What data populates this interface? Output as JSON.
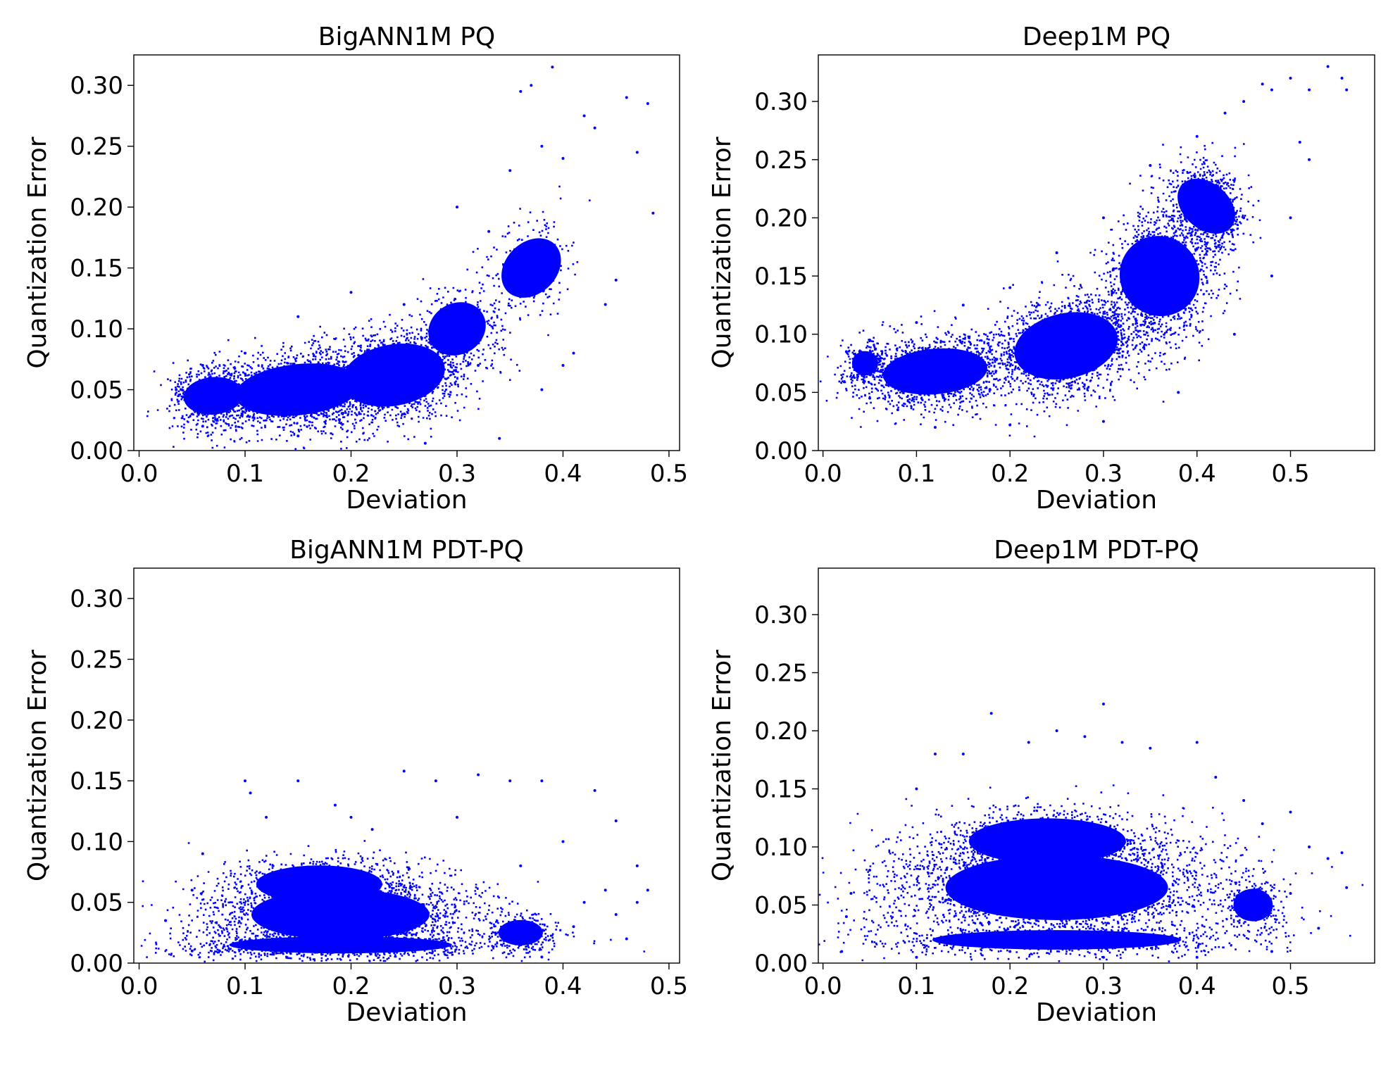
{
  "figure": {
    "colors": {
      "points": "#0000ff",
      "axes": "#000000",
      "background": "#ffffff"
    }
  },
  "chart_data": [
    {
      "type": "scatter",
      "title": "BigANN1M PQ",
      "xlabel": "Deviation",
      "ylabel": "Quantization Error",
      "xlim": [
        -0.005,
        0.51
      ],
      "ylim": [
        0.0,
        0.325
      ],
      "xticks": [
        "0.0",
        "0.1",
        "0.2",
        "0.3",
        "0.4",
        "0.5"
      ],
      "yticks": [
        "0.00",
        "0.05",
        "0.10",
        "0.15",
        "0.20",
        "0.25",
        "0.30"
      ],
      "grid": false,
      "color": "#0000ff",
      "points": [
        [
          0.035,
          0.05
        ],
        [
          0.06,
          0.07
        ],
        [
          0.1,
          0.08
        ],
        [
          0.15,
          0.11
        ],
        [
          0.2,
          0.13
        ],
        [
          0.25,
          0.12
        ],
        [
          0.3,
          0.2
        ],
        [
          0.35,
          0.23
        ],
        [
          0.38,
          0.25
        ],
        [
          0.39,
          0.315
        ],
        [
          0.42,
          0.275
        ],
        [
          0.43,
          0.265
        ],
        [
          0.46,
          0.29
        ],
        [
          0.47,
          0.245
        ],
        [
          0.48,
          0.285
        ],
        [
          0.485,
          0.195
        ],
        [
          0.37,
          0.3
        ],
        [
          0.36,
          0.295
        ],
        [
          0.4,
          0.24
        ],
        [
          0.33,
          0.18
        ],
        [
          0.27,
          0.006
        ],
        [
          0.15,
          0.012
        ],
        [
          0.34,
          0.01
        ],
        [
          0.41,
          0.08
        ],
        [
          0.44,
          0.12
        ],
        [
          0.45,
          0.14
        ],
        [
          0.06,
          0.02
        ],
        [
          0.32,
          0.07
        ],
        [
          0.38,
          0.05
        ],
        [
          0.4,
          0.07
        ]
      ]
    },
    {
      "type": "scatter",
      "title": "Deep1M PQ",
      "xlabel": "Deviation",
      "ylabel": "Quantization Error",
      "xlim": [
        -0.005,
        0.59
      ],
      "ylim": [
        0.0,
        0.34
      ],
      "xticks": [
        "0.0",
        "0.1",
        "0.2",
        "0.3",
        "0.4",
        "0.5"
      ],
      "yticks": [
        "0.00",
        "0.05",
        "0.10",
        "0.15",
        "0.20",
        "0.25",
        "0.30"
      ],
      "grid": false,
      "color": "#0000ff",
      "points": [
        [
          0.025,
          0.085
        ],
        [
          0.05,
          0.095
        ],
        [
          0.1,
          0.11
        ],
        [
          0.15,
          0.125
        ],
        [
          0.2,
          0.14
        ],
        [
          0.25,
          0.17
        ],
        [
          0.3,
          0.2
        ],
        [
          0.35,
          0.245
        ],
        [
          0.4,
          0.27
        ],
        [
          0.45,
          0.3
        ],
        [
          0.48,
          0.31
        ],
        [
          0.5,
          0.32
        ],
        [
          0.52,
          0.31
        ],
        [
          0.54,
          0.33
        ],
        [
          0.555,
          0.32
        ],
        [
          0.56,
          0.31
        ],
        [
          0.45,
          0.2
        ],
        [
          0.48,
          0.15
        ],
        [
          0.5,
          0.2
        ],
        [
          0.52,
          0.25
        ],
        [
          0.12,
          0.02
        ],
        [
          0.2,
          0.022
        ],
        [
          0.3,
          0.025
        ],
        [
          0.38,
          0.05
        ],
        [
          0.44,
          0.1
        ],
        [
          0.05,
          0.045
        ],
        [
          0.08,
          0.035
        ],
        [
          0.43,
          0.29
        ],
        [
          0.47,
          0.315
        ],
        [
          0.51,
          0.265
        ]
      ]
    },
    {
      "type": "scatter",
      "title": "BigANN1M PDT-PQ",
      "xlabel": "Deviation",
      "ylabel": "Quantization Error",
      "xlim": [
        -0.005,
        0.51
      ],
      "ylim": [
        0.0,
        0.325
      ],
      "xticks": [
        "0.0",
        "0.1",
        "0.2",
        "0.3",
        "0.4",
        "0.5"
      ],
      "yticks": [
        "0.00",
        "0.05",
        "0.10",
        "0.15",
        "0.20",
        "0.25",
        "0.30"
      ],
      "grid": false,
      "color": "#0000ff",
      "points": [
        [
          0.025,
          0.035
        ],
        [
          0.05,
          0.06
        ],
        [
          0.1,
          0.15
        ],
        [
          0.15,
          0.15
        ],
        [
          0.2,
          0.12
        ],
        [
          0.25,
          0.158
        ],
        [
          0.28,
          0.15
        ],
        [
          0.32,
          0.155
        ],
        [
          0.35,
          0.15
        ],
        [
          0.38,
          0.15
        ],
        [
          0.43,
          0.142
        ],
        [
          0.45,
          0.117
        ],
        [
          0.47,
          0.08
        ],
        [
          0.48,
          0.06
        ],
        [
          0.4,
          0.1
        ],
        [
          0.42,
          0.05
        ],
        [
          0.45,
          0.04
        ],
        [
          0.46,
          0.02
        ],
        [
          0.3,
          0.12
        ],
        [
          0.12,
          0.12
        ],
        [
          0.05,
          0.01
        ],
        [
          0.38,
          0.005
        ],
        [
          0.105,
          0.14
        ],
        [
          0.185,
          0.13
        ],
        [
          0.22,
          0.11
        ],
        [
          0.36,
          0.08
        ],
        [
          0.41,
          0.03
        ],
        [
          0.44,
          0.06
        ],
        [
          0.47,
          0.05
        ],
        [
          0.06,
          0.09
        ]
      ]
    },
    {
      "type": "scatter",
      "title": "Deep1M PDT-PQ",
      "xlabel": "Deviation",
      "ylabel": "Quantization Error",
      "xlim": [
        -0.005,
        0.59
      ],
      "ylim": [
        0.0,
        0.34
      ],
      "xticks": [
        "0.0",
        "0.1",
        "0.2",
        "0.3",
        "0.4",
        "0.5"
      ],
      "yticks": [
        "0.00",
        "0.05",
        "0.10",
        "0.15",
        "0.20",
        "0.25",
        "0.30"
      ],
      "grid": false,
      "color": "#0000ff",
      "points": [
        [
          0.025,
          0.04
        ],
        [
          0.05,
          0.08
        ],
        [
          0.1,
          0.15
        ],
        [
          0.15,
          0.18
        ],
        [
          0.18,
          0.215
        ],
        [
          0.22,
          0.19
        ],
        [
          0.25,
          0.2
        ],
        [
          0.3,
          0.223
        ],
        [
          0.32,
          0.19
        ],
        [
          0.35,
          0.185
        ],
        [
          0.4,
          0.19
        ],
        [
          0.45,
          0.14
        ],
        [
          0.5,
          0.13
        ],
        [
          0.52,
          0.1
        ],
        [
          0.54,
          0.09
        ],
        [
          0.555,
          0.095
        ],
        [
          0.56,
          0.065
        ],
        [
          0.53,
          0.03
        ],
        [
          0.48,
          0.01
        ],
        [
          0.02,
          0.01
        ],
        [
          0.1,
          0.005
        ],
        [
          0.2,
          0.01
        ],
        [
          0.3,
          0.005
        ],
        [
          0.4,
          0.005
        ],
        [
          0.12,
          0.18
        ],
        [
          0.28,
          0.195
        ],
        [
          0.42,
          0.16
        ],
        [
          0.47,
          0.12
        ],
        [
          0.03,
          0.06
        ],
        [
          0.5,
          0.06
        ]
      ]
    }
  ]
}
